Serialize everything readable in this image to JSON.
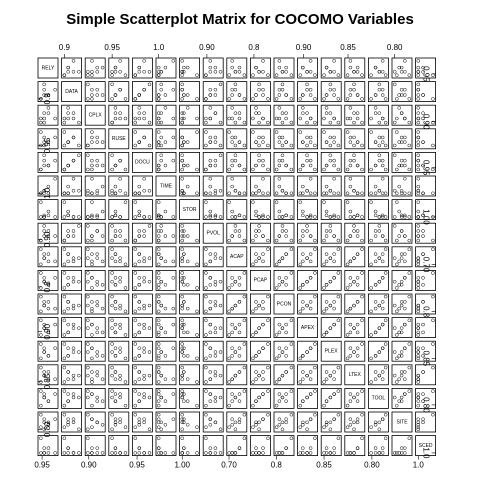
{
  "chart_data": {
    "type": "scatter_matrix",
    "title": "Simple Scatterplot Matrix for COCOMO Variables",
    "variables": [
      {
        "name": "RELY",
        "values": [
          0.92,
          1,
          1,
          1.1,
          0.92,
          1,
          1.1,
          1.26
        ],
        "lim": [
          0.9,
          1.28
        ],
        "ticks": [
          0.95
        ]
      },
      {
        "name": "DATA",
        "values": [
          0.9,
          1,
          1.14,
          1,
          0.9,
          1.28,
          1,
          1.14
        ],
        "lim": [
          0.88,
          1.3
        ],
        "ticks": [
          0.9
        ]
      },
      {
        "name": "CPLX",
        "values": [
          0.87,
          1,
          1.17,
          1.34,
          1,
          0.87,
          1.17,
          1
        ],
        "lim": [
          0.85,
          1.36
        ],
        "ticks": [
          {
            "value": 0.9,
            "label": "0.90"
          }
        ]
      },
      {
        "name": "RUSE",
        "values": [
          0.95,
          1,
          1.07,
          1,
          1.15,
          0.95,
          1,
          1.07
        ],
        "lim": [
          0.93,
          1.17
        ],
        "ticks": [
          0.95
        ]
      },
      {
        "name": "DOCU",
        "values": [
          0.91,
          1,
          1.11,
          1,
          0.91,
          1.23,
          1,
          1.11
        ],
        "lim": [
          0.89,
          1.25
        ],
        "ticks": [
          0.95
        ]
      },
      {
        "name": "TIME",
        "values": [
          1,
          1,
          1.11,
          1.29,
          1,
          1.11,
          1,
          1.63
        ],
        "lim": [
          0.97,
          1.66
        ],
        "ticks": [
          {
            "value": 1,
            "label": "1.0"
          }
        ]
      },
      {
        "name": "STOR",
        "values": [
          1,
          1.05,
          1,
          1.17,
          1.46,
          1,
          1.05,
          1
        ],
        "lim": [
          0.98,
          1.48
        ],
        "ticks": [
          {
            "value": 1,
            "label": "1.00"
          }
        ]
      },
      {
        "name": "PVOL",
        "values": [
          0.87,
          1,
          1.15,
          1,
          0.87,
          1.3,
          1.15,
          1
        ],
        "lim": [
          0.85,
          1.32
        ],
        "ticks": [
          {
            "value": 0.9,
            "label": "0.90"
          }
        ]
      },
      {
        "name": "ACAP",
        "values": [
          1.42,
          1.19,
          1,
          0.85,
          0.71,
          1,
          1.19,
          0.85
        ],
        "lim": [
          0.69,
          1.44
        ],
        "ticks": [
          {
            "value": 0.7,
            "label": "0.70"
          }
        ]
      },
      {
        "name": "PCAP",
        "values": [
          1.34,
          1.15,
          1,
          0.88,
          0.76,
          1,
          0.88,
          1.15
        ],
        "lim": [
          0.74,
          1.36
        ],
        "ticks": [
          0.8
        ]
      },
      {
        "name": "PCON",
        "values": [
          1.29,
          1.12,
          1,
          0.9,
          0.81,
          1,
          1.12,
          0.9
        ],
        "lim": [
          0.79,
          1.31
        ],
        "ticks": [
          0.8
        ]
      },
      {
        "name": "APEX",
        "values": [
          1.22,
          1.1,
          1,
          0.88,
          0.81,
          1,
          0.88,
          1.1
        ],
        "lim": [
          0.79,
          1.24
        ],
        "ticks": [
          {
            "value": 0.9,
            "label": "0.90"
          }
        ]
      },
      {
        "name": "PLEX",
        "values": [
          1.19,
          1.09,
          1,
          0.91,
          0.85,
          1,
          0.91,
          1.09
        ],
        "lim": [
          0.83,
          1.21
        ],
        "ticks": [
          0.85
        ]
      },
      {
        "name": "LTEX",
        "values": [
          1.2,
          1.09,
          1,
          0.91,
          0.84,
          1,
          1.09,
          0.91
        ],
        "lim": [
          0.82,
          1.22
        ],
        "ticks": [
          0.85
        ]
      },
      {
        "name": "TOOL",
        "values": [
          1.17,
          1.09,
          1,
          0.9,
          0.78,
          1,
          0.9,
          1.09
        ],
        "lim": [
          0.76,
          1.19
        ],
        "ticks": [
          {
            "value": 0.8,
            "label": "0.80"
          }
        ]
      },
      {
        "name": "SITE",
        "values": [
          1.22,
          1.09,
          1,
          0.93,
          0.86,
          0.8,
          1,
          1.09
        ],
        "lim": [
          0.78,
          1.24
        ],
        "ticks": [
          {
            "value": 0.8,
            "label": "0.80"
          }
        ]
      },
      {
        "name": "SCED",
        "values": [
          1.43,
          1.14,
          1,
          1,
          1,
          1,
          1.14,
          1
        ],
        "lim": [
          0.98,
          1.45
        ],
        "ticks": [
          {
            "value": 1,
            "label": "1.0"
          }
        ]
      }
    ]
  }
}
